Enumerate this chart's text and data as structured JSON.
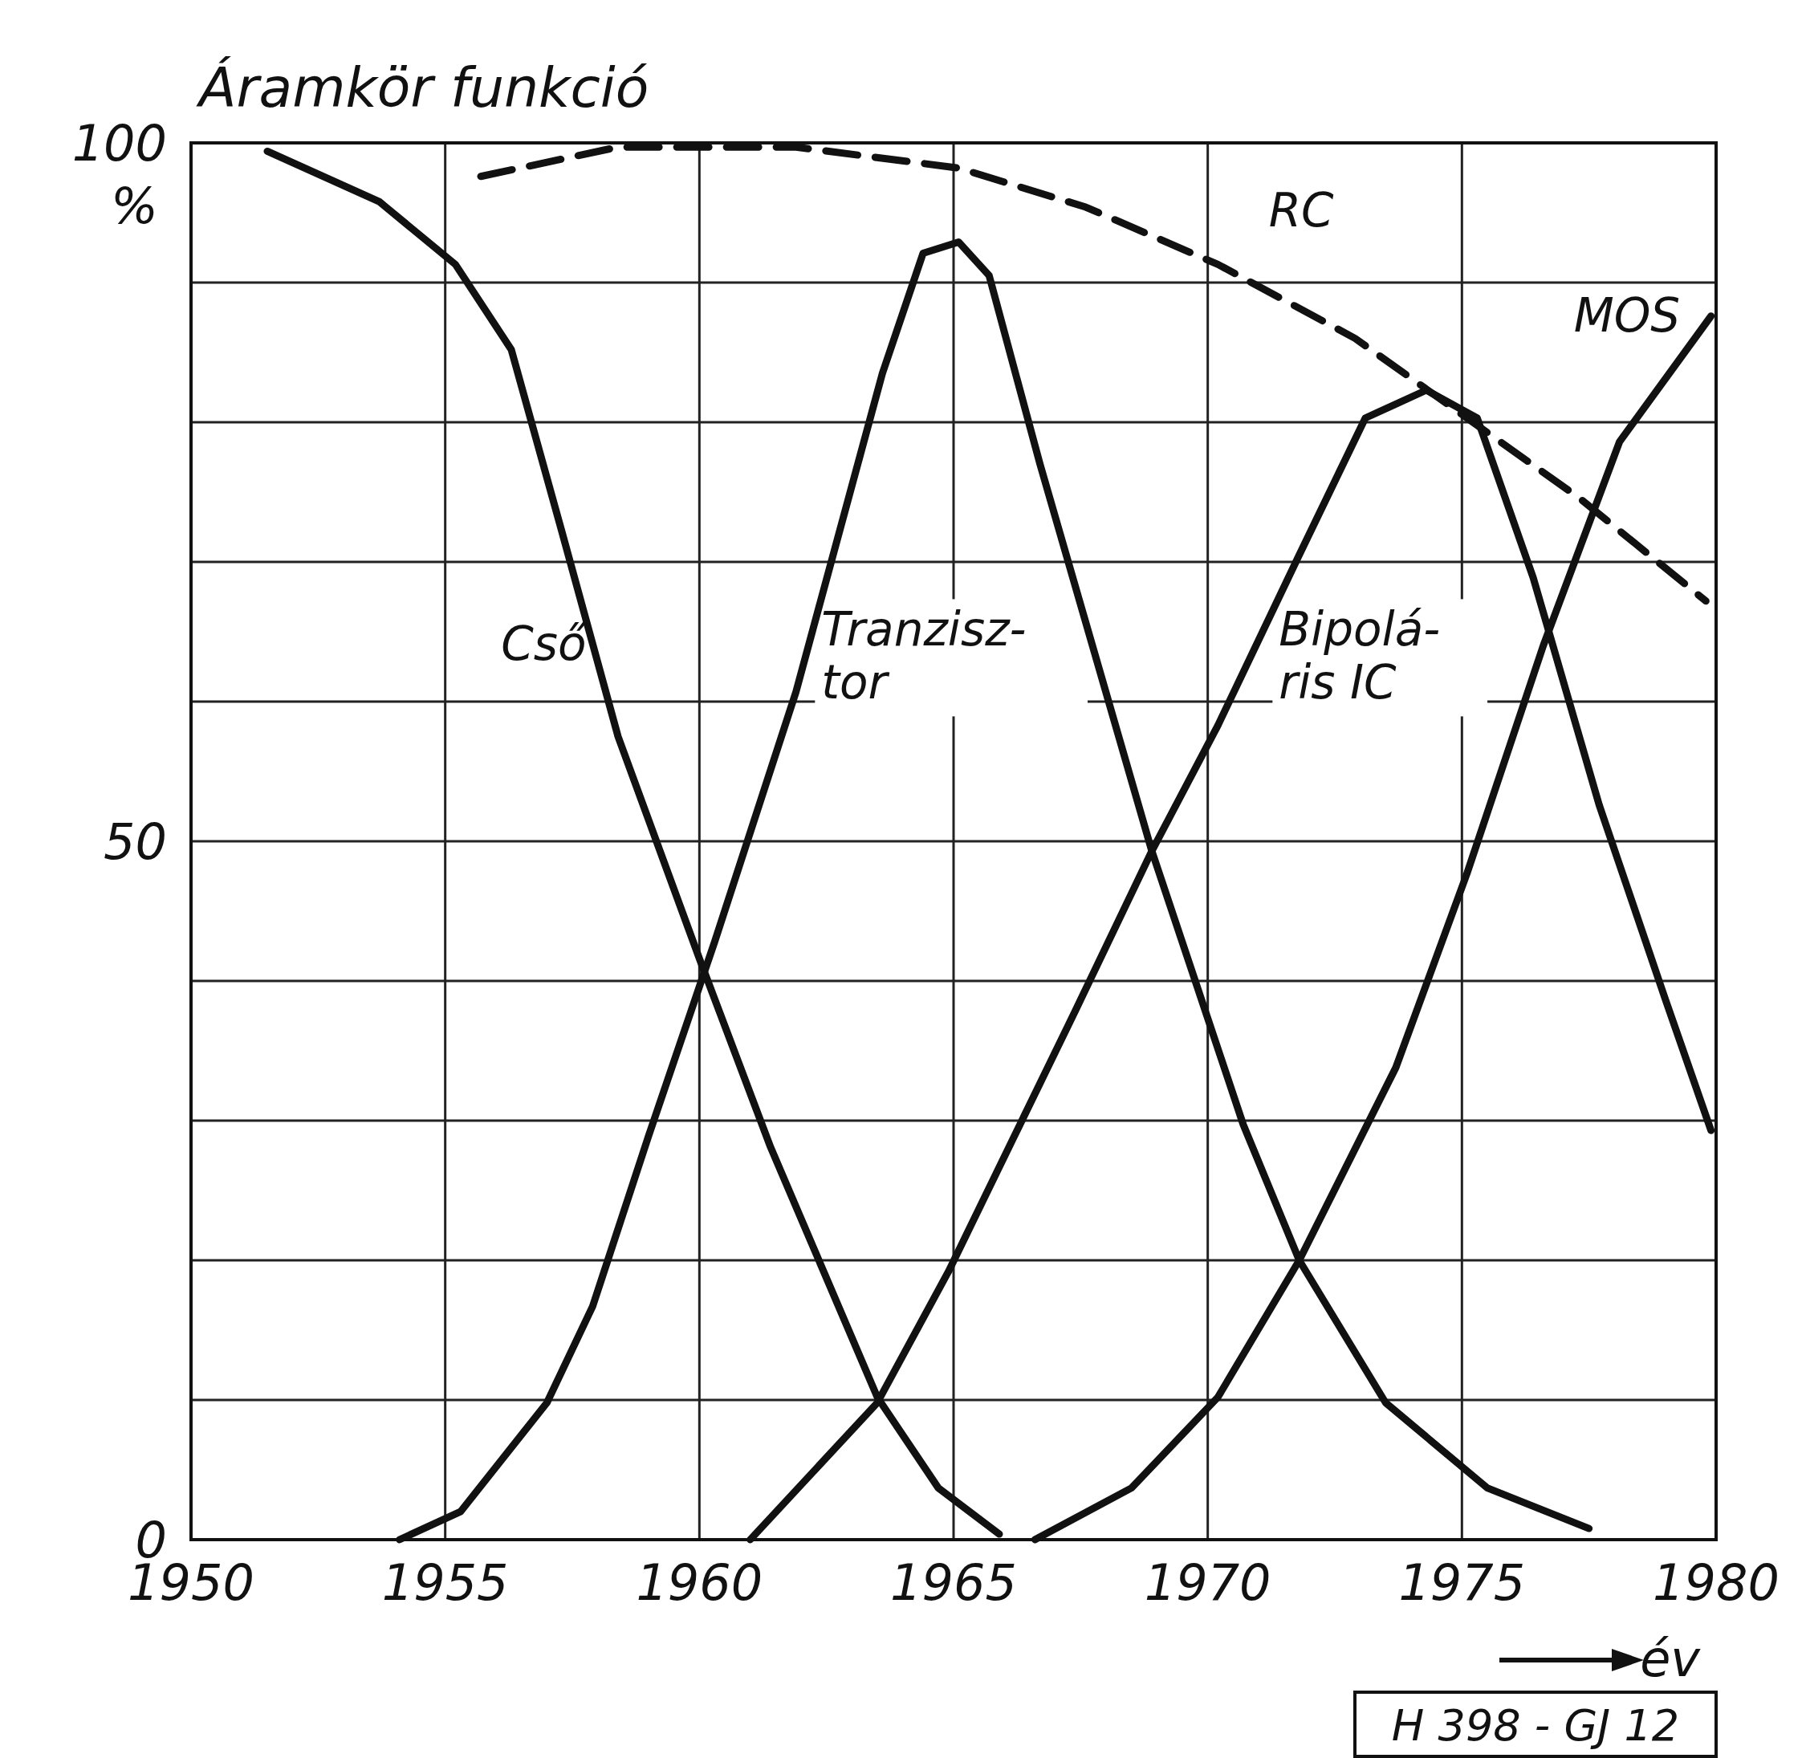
{
  "chart_data": {
    "type": "line",
    "ylabel": "Áramkör funkció",
    "xlabel": "év",
    "annotations": [
      "%",
      "H 398 - GJ 12"
    ],
    "xlim": [
      1950,
      1980
    ],
    "xticks": [
      1950,
      1955,
      1960,
      1965,
      1970,
      1975,
      1980
    ],
    "ylim": [
      0,
      100
    ],
    "yticks": [
      0,
      {
        "value": 10,
        "label": null
      },
      {
        "value": 20,
        "label": null
      },
      {
        "value": 30,
        "label": null
      },
      {
        "value": 40,
        "label": null
      },
      50,
      {
        "value": 60,
        "label": null
      },
      {
        "value": 70,
        "label": null
      },
      {
        "value": 80,
        "label": null
      },
      {
        "value": 90,
        "label": null
      },
      100
    ],
    "grid": true,
    "series": [
      {
        "name": "Cső",
        "color": "#111111",
        "x": [
          1951.5,
          1953.7,
          1955.2,
          1956.3,
          1957.3,
          1958.4,
          1960,
          1961.4,
          1963.5,
          1964.7,
          1965.9
        ],
        "values": [
          99.4,
          95.8,
          91.3,
          85.2,
          72.1,
          57.5,
          41.6,
          28.1,
          10.2,
          3.7,
          0.4
        ]
      },
      {
        "name": "Tranzisz-\ntor",
        "color": "#111111",
        "x": [
          1954.1,
          1955.3,
          1957,
          1957.9,
          1959,
          1960.3,
          1961.9,
          1963.6,
          1964.4,
          1965.1,
          1965.7,
          1966.7,
          1968.9,
          1970.7,
          1971.8,
          1973.5,
          1975.5,
          1977.5
        ],
        "values": [
          0,
          2,
          9.8,
          16.7,
          28.9,
          42.8,
          60.7,
          83.5,
          92.1,
          92.9,
          90.5,
          77,
          49.3,
          29.7,
          20,
          9.8,
          3.7,
          0.8
        ]
      },
      {
        "name": "Bipolá-\nris IC",
        "color": "#111111",
        "x": [
          1961,
          1963.5,
          1964.9,
          1967.4,
          1968.9,
          1970.2,
          1971.8,
          1973.1,
          1974.3,
          1975.3,
          1976.4,
          1977.7,
          1979,
          1979.9
        ],
        "values": [
          0,
          9.8,
          19.2,
          37.9,
          49.3,
          58.3,
          70.5,
          80.3,
          82.3,
          80.3,
          68.9,
          52.6,
          38.7,
          29.3
        ]
      },
      {
        "name": "MOS",
        "color": "#111111",
        "x": [
          1966.6,
          1968.5,
          1970.2,
          1971.8,
          1973.7,
          1975.1,
          1976.6,
          1978.1,
          1979.9
        ],
        "values": [
          0,
          3.7,
          10.2,
          20,
          33.8,
          47.7,
          64,
          78.6,
          87.6
        ]
      },
      {
        "name": "RC",
        "color": "#111111",
        "line_style": "dashed",
        "x": [
          1955.7,
          1958.4,
          1961.9,
          1965.1,
          1967.6,
          1970.2,
          1972.9,
          1975.1,
          1977.3,
          1979.8
        ],
        "values": [
          97.6,
          99.7,
          99.7,
          98.2,
          95.4,
          91.3,
          86,
          80.3,
          74.6,
          67.2
        ]
      }
    ]
  }
}
